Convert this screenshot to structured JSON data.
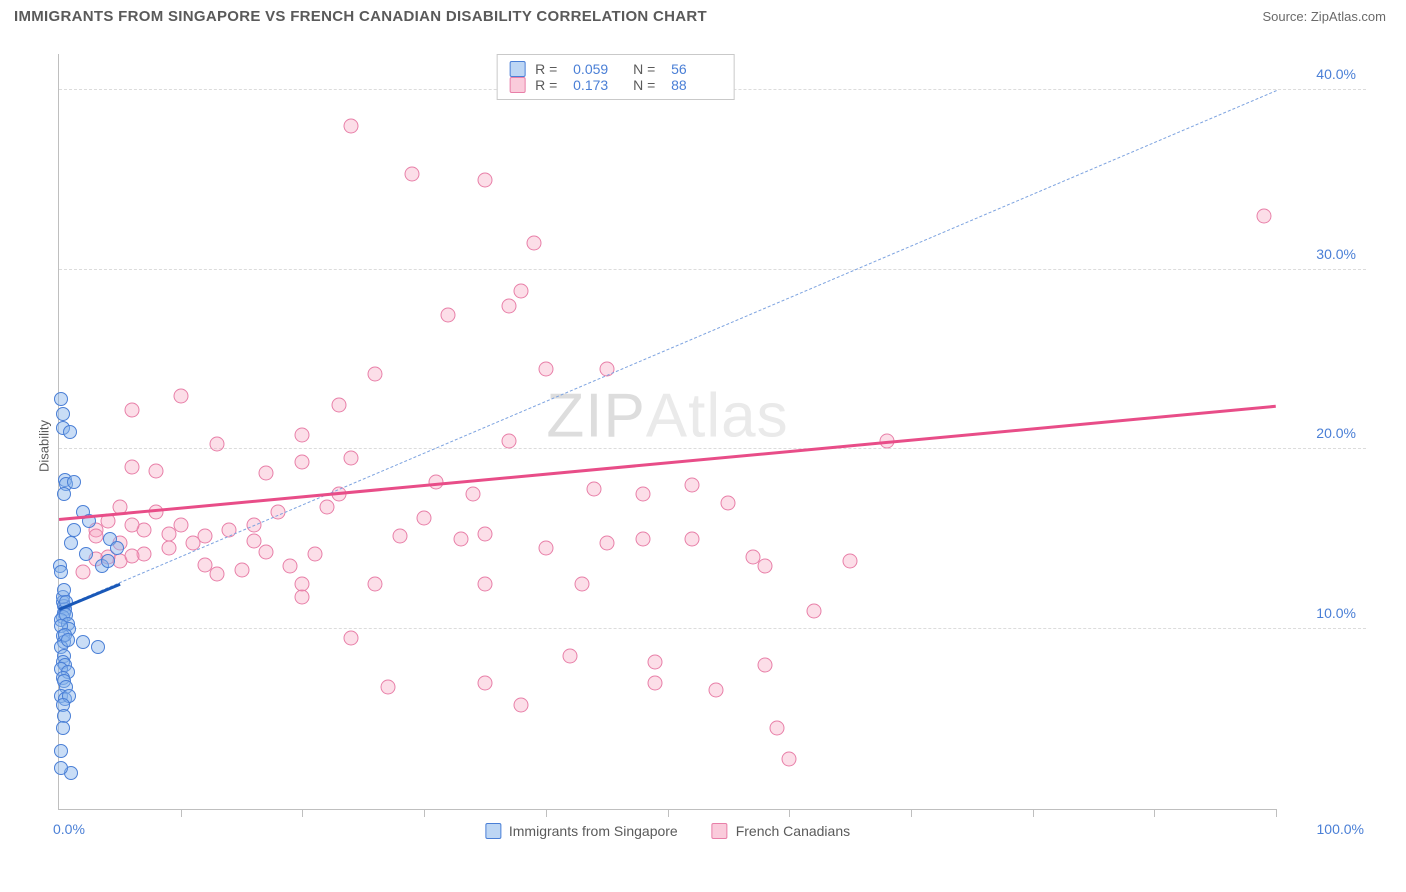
{
  "header": {
    "title": "IMMIGRANTS FROM SINGAPORE VS FRENCH CANADIAN DISABILITY CORRELATION CHART",
    "source_label": "Source: ",
    "source_name": "ZipAtlas.com"
  },
  "ylabel": "Disability",
  "watermark": {
    "a": "ZIP",
    "b": "Atlas"
  },
  "chart": {
    "type": "scatter",
    "xlim": [
      0,
      100
    ],
    "ylim": [
      0,
      42
    ],
    "background_color": "#ffffff",
    "grid_color": "#dcdcdc",
    "axis_color": "#bfbfbf",
    "yticks": [
      10,
      20,
      30,
      40
    ],
    "ytick_labels": [
      "10.0%",
      "20.0%",
      "30.0%",
      "40.0%"
    ],
    "xticks": [
      10,
      20,
      30,
      40,
      50,
      60,
      70,
      80,
      90,
      100
    ],
    "xlab_left": "0.0%",
    "xlab_right": "100.0%",
    "series_blue": {
      "label": "Immigrants from Singapore",
      "color": "#4a7fd6",
      "fill": "rgba(135,180,235,0.45)",
      "R": "0.059",
      "N": "56",
      "regression": {
        "x1": 0,
        "y1": 11.2,
        "x2": 5,
        "y2": 12.6
      },
      "diagonal": {
        "x1": 0,
        "y1": 11.2,
        "x2": 100,
        "y2": 40.0
      },
      "points": [
        [
          0.2,
          22.8
        ],
        [
          0.3,
          22
        ],
        [
          0.3,
          21.2
        ],
        [
          0.9,
          21
        ],
        [
          0.1,
          13.5
        ],
        [
          0.2,
          13.2
        ],
        [
          0.5,
          18.3
        ],
        [
          0.6,
          18.1
        ],
        [
          1.2,
          18.2
        ],
        [
          2,
          16.5
        ],
        [
          0.4,
          17.5
        ],
        [
          0.3,
          11.5
        ],
        [
          0.4,
          11.3
        ],
        [
          0.5,
          11.1
        ],
        [
          0.4,
          10.9
        ],
        [
          0.3,
          10.7
        ],
        [
          0.2,
          10.5
        ],
        [
          0.6,
          10.8
        ],
        [
          0.7,
          10.3
        ],
        [
          0.8,
          10
        ],
        [
          0.2,
          10.2
        ],
        [
          0.3,
          9.6
        ],
        [
          0.4,
          9.3
        ],
        [
          0.2,
          9
        ],
        [
          0.5,
          9.7
        ],
        [
          0.7,
          9.4
        ],
        [
          2,
          9.3
        ],
        [
          3.2,
          9
        ],
        [
          0.4,
          8.5
        ],
        [
          0.3,
          8.2
        ],
        [
          0.5,
          8
        ],
        [
          0.2,
          7.8
        ],
        [
          0.7,
          7.6
        ],
        [
          0.3,
          7.3
        ],
        [
          0.4,
          7.1
        ],
        [
          0.6,
          6.8
        ],
        [
          0.2,
          6.3
        ],
        [
          0.5,
          6.1
        ],
        [
          0.8,
          6.3
        ],
        [
          0.3,
          5.8
        ],
        [
          0.4,
          5.2
        ],
        [
          0.3,
          4.5
        ],
        [
          0.2,
          3.2
        ],
        [
          1,
          2
        ],
        [
          0.2,
          2.3
        ],
        [
          0.3,
          11.8
        ],
        [
          0.4,
          12.2
        ],
        [
          0.6,
          11.5
        ],
        [
          1,
          14.8
        ],
        [
          1.2,
          15.5
        ],
        [
          2.2,
          14.2
        ],
        [
          2.5,
          16
        ],
        [
          3.5,
          13.5
        ],
        [
          4,
          13.8
        ],
        [
          4.2,
          15
        ],
        [
          4.8,
          14.5
        ]
      ]
    },
    "series_pink": {
      "label": "French Canadians",
      "color": "#e84d88",
      "fill": "rgba(245,160,190,0.35)",
      "R": "0.173",
      "N": "88",
      "regression": {
        "x1": 0,
        "y1": 16.2,
        "x2": 100,
        "y2": 22.5
      },
      "points": [
        [
          24,
          38
        ],
        [
          29,
          35.3
        ],
        [
          35,
          35
        ],
        [
          39,
          31.5
        ],
        [
          38,
          28.8
        ],
        [
          37,
          28
        ],
        [
          32,
          27.5
        ],
        [
          26,
          24.2
        ],
        [
          40,
          24.5
        ],
        [
          45,
          24.5
        ],
        [
          23,
          22.5
        ],
        [
          10,
          23
        ],
        [
          6,
          22.2
        ],
        [
          13,
          20.3
        ],
        [
          20,
          20.8
        ],
        [
          37,
          20.5
        ],
        [
          68,
          20.5
        ],
        [
          20,
          19.3
        ],
        [
          24,
          19.5
        ],
        [
          6,
          19
        ],
        [
          8,
          18.8
        ],
        [
          17,
          18.7
        ],
        [
          31,
          18.2
        ],
        [
          34,
          17.5
        ],
        [
          44,
          17.8
        ],
        [
          48,
          17.5
        ],
        [
          40,
          14.5
        ],
        [
          45,
          14.8
        ],
        [
          52,
          18
        ],
        [
          52,
          15
        ],
        [
          55,
          17
        ],
        [
          7,
          15.5
        ],
        [
          9,
          15.3
        ],
        [
          12,
          15.2
        ],
        [
          14,
          15.5
        ],
        [
          16,
          14.9
        ],
        [
          17,
          14.3
        ],
        [
          21,
          14.2
        ],
        [
          3,
          15.5
        ],
        [
          5,
          14.8
        ],
        [
          26,
          12.5
        ],
        [
          58,
          13.5
        ],
        [
          57,
          14
        ],
        [
          62,
          11
        ],
        [
          65,
          13.8
        ],
        [
          24,
          9.5
        ],
        [
          27,
          6.8
        ],
        [
          35,
          7
        ],
        [
          38,
          5.8
        ],
        [
          35,
          12.5
        ],
        [
          43,
          12.5
        ],
        [
          42,
          8.5
        ],
        [
          49,
          7
        ],
        [
          49,
          8.2
        ],
        [
          58,
          8
        ],
        [
          54,
          6.6
        ],
        [
          59,
          4.5
        ],
        [
          60,
          2.8
        ],
        [
          99,
          33
        ],
        [
          5,
          16.8
        ],
        [
          4,
          16
        ],
        [
          3,
          15.2
        ],
        [
          6,
          15.8
        ],
        [
          8,
          16.5
        ],
        [
          10,
          15.8
        ],
        [
          7,
          14.2
        ],
        [
          5,
          13.8
        ],
        [
          3,
          13.9
        ],
        [
          2,
          13.2
        ],
        [
          4,
          14
        ],
        [
          6,
          14.1
        ],
        [
          9,
          14.5
        ],
        [
          11,
          14.8
        ],
        [
          12,
          13.6
        ],
        [
          13,
          13.1
        ],
        [
          15,
          13.3
        ],
        [
          19,
          13.5
        ],
        [
          16,
          15.8
        ],
        [
          18,
          16.5
        ],
        [
          22,
          16.8
        ],
        [
          23,
          17.5
        ],
        [
          28,
          15.2
        ],
        [
          30,
          16.2
        ],
        [
          33,
          15
        ],
        [
          35,
          15.3
        ],
        [
          20,
          11.8
        ],
        [
          20,
          12.5
        ],
        [
          48,
          15
        ]
      ]
    }
  },
  "legend_top": {
    "r_label": "R =",
    "n_label": "N ="
  }
}
